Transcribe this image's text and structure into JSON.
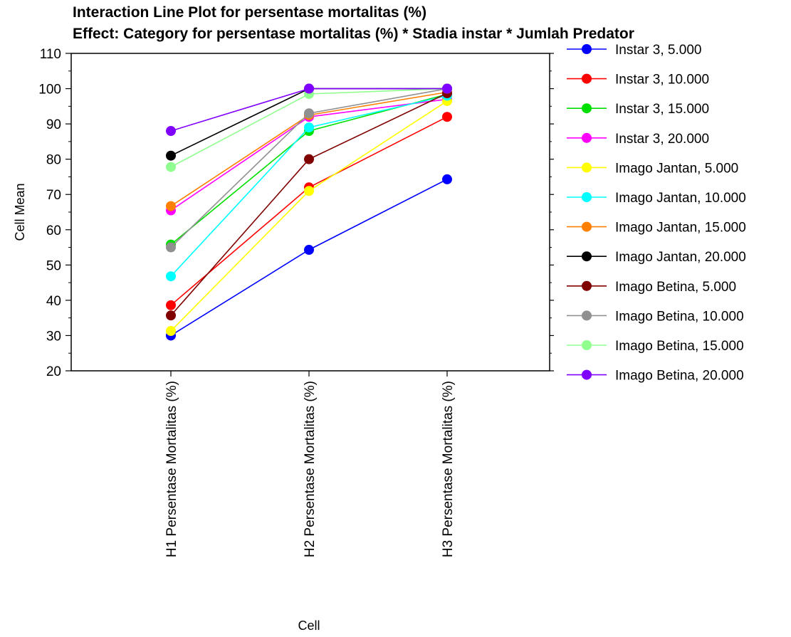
{
  "chart_data": {
    "type": "line",
    "title": "Interaction Line Plot for persentase mortalitas (%)",
    "subtitle": "Effect: Category for persentase mortalitas (%) * Stadia instar * Jumlah Predator",
    "xlabel": "Cell",
    "ylabel": "Cell Mean",
    "ylim": [
      20,
      110
    ],
    "yticks": [
      20,
      30,
      40,
      50,
      60,
      70,
      80,
      90,
      100,
      110
    ],
    "categories": [
      "H1 Persentase Mortalitas (%)",
      "H2 Persentase Mortalitas (%)",
      "H3 Persentase Mortalitas (%)"
    ],
    "legend_position": "right",
    "grid": false,
    "series": [
      {
        "name": "Instar 3, 5.000",
        "color": "#0000FF",
        "values": [
          30,
          54.3,
          74.3
        ]
      },
      {
        "name": "Instar 3, 10.000",
        "color": "#FF0000",
        "values": [
          38.6,
          72,
          92
        ]
      },
      {
        "name": "Instar 3, 15.000",
        "color": "#00E000",
        "values": [
          55.8,
          88,
          98.4
        ]
      },
      {
        "name": "Instar 3, 20.000",
        "color": "#FF00FF",
        "values": [
          65.5,
          92,
          97
        ]
      },
      {
        "name": "Imago Jantan, 5.000",
        "color": "#FFFF00",
        "values": [
          31.3,
          71,
          96.5
        ]
      },
      {
        "name": "Imago Jantan, 10.000",
        "color": "#00FFFF",
        "values": [
          46.8,
          89,
          98
        ]
      },
      {
        "name": "Imago Jantan, 15.000",
        "color": "#FF8000",
        "values": [
          66.7,
          92.5,
          99
        ]
      },
      {
        "name": "Imago Jantan, 20.000",
        "color": "#000000",
        "values": [
          81,
          100,
          100
        ]
      },
      {
        "name": "Imago Betina, 5.000",
        "color": "#800000",
        "values": [
          35.7,
          80,
          98.7
        ]
      },
      {
        "name": "Imago Betina, 10.000",
        "color": "#909090",
        "values": [
          55,
          93,
          100
        ]
      },
      {
        "name": "Imago Betina, 15.000",
        "color": "#90FF90",
        "values": [
          77.8,
          98.5,
          100
        ]
      },
      {
        "name": "Imago Betina, 20.000",
        "color": "#8000FF",
        "values": [
          88,
          100,
          100
        ]
      }
    ]
  }
}
